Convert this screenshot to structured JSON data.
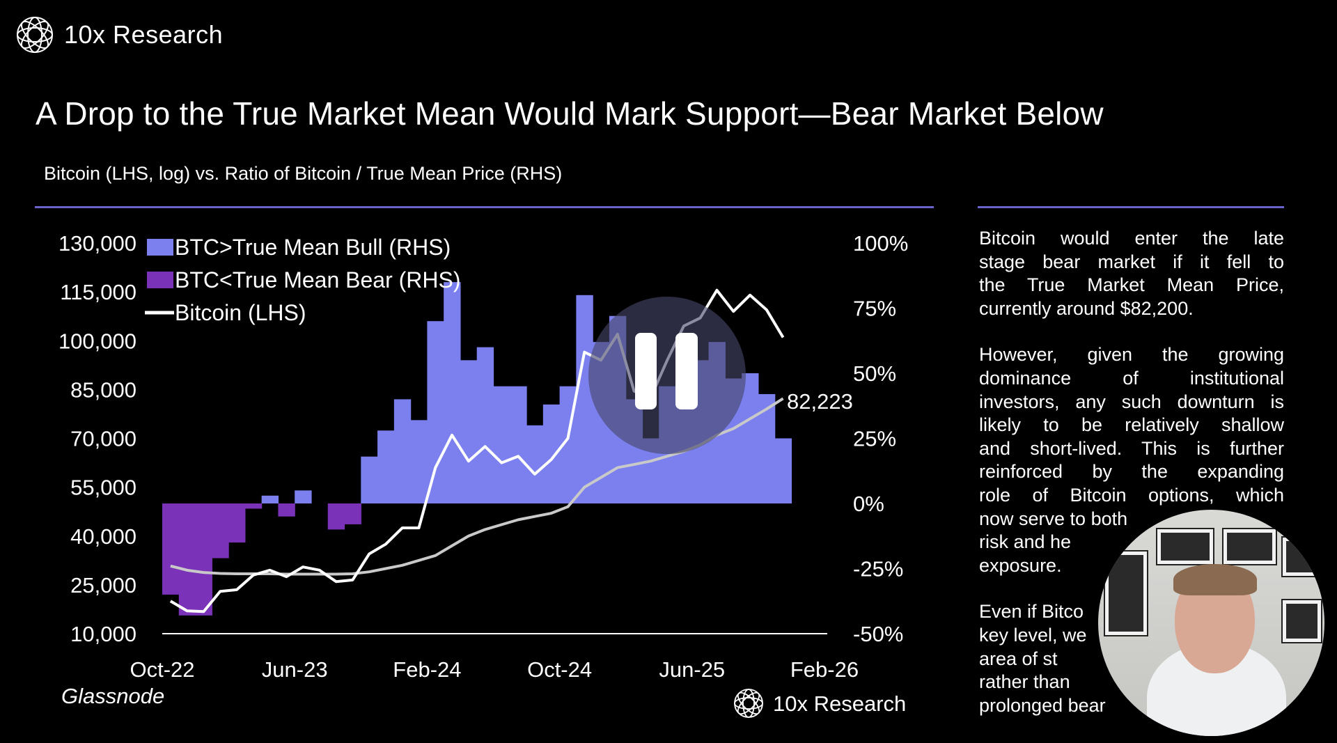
{
  "brand": {
    "name": "10x Research",
    "icon": "globe-mesh-icon"
  },
  "title": "A Drop to the True Market Mean Would Mark Support—Bear Market Below",
  "subtitle": "Bitcoin (LHS, log) vs. Ratio of Bitcoin / True Mean Price (RHS)",
  "source": "Glassnode",
  "footer_brand": "10x Research",
  "colors": {
    "bull": "#7b80ee",
    "bear": "#7a33b8",
    "bitcoin": "#ffffff",
    "true_mean": "#c9c9c9",
    "rule": "#6a63c9"
  },
  "chart_data": {
    "type": "area",
    "x_ticks": [
      "Oct-22",
      "Jun-23",
      "Feb-24",
      "Oct-24",
      "Jun-25",
      "Feb-26"
    ],
    "y_left_ticks": [
      "10,000",
      "25,000",
      "40,000",
      "55,000",
      "70,000",
      "85,000",
      "100,000",
      "115,000",
      "130,000"
    ],
    "y_right_ticks": [
      "-50%",
      "-25%",
      "0%",
      "25%",
      "50%",
      "75%",
      "100%"
    ],
    "ylim_left": [
      10000,
      130000
    ],
    "ylim_right": [
      -50,
      100
    ],
    "legend": [
      {
        "label": "BTC>True Mean Bull (RHS)",
        "kind": "area"
      },
      {
        "label": "BTC<True Mean Bear (RHS)",
        "kind": "area"
      },
      {
        "label": "Bitcoin (LHS)",
        "kind": "line"
      }
    ],
    "legend_position": "top-left",
    "annotation": "82,223",
    "x": [
      "Oct-22",
      "Nov-22",
      "Dec-22",
      "Jan-23",
      "Feb-23",
      "Mar-23",
      "Apr-23",
      "May-23",
      "Jun-23",
      "Jul-23",
      "Aug-23",
      "Sep-23",
      "Oct-23",
      "Nov-23",
      "Dec-23",
      "Jan-24",
      "Feb-24",
      "Mar-24",
      "Apr-24",
      "May-24",
      "Jun-24",
      "Jul-24",
      "Aug-24",
      "Sep-24",
      "Oct-24",
      "Nov-24",
      "Dec-24",
      "Jan-25",
      "Feb-25",
      "Mar-25",
      "Apr-25",
      "May-25",
      "Jun-25",
      "Jul-25",
      "Aug-25",
      "Sep-25",
      "Oct-25",
      "Nov-25"
    ],
    "series": [
      {
        "name": "Bitcoin (LHS)",
        "axis": "left",
        "values": [
          20000,
          17000,
          16800,
          23000,
          23500,
          28000,
          29500,
          27500,
          30500,
          29500,
          26000,
          26500,
          34500,
          37500,
          42500,
          42500,
          61000,
          71000,
          63000,
          67500,
          62500,
          64500,
          59000,
          63500,
          70000,
          96500,
          94000,
          102000,
          84500,
          82500,
          94000,
          104500,
          107000,
          115500,
          109000,
          114000,
          109500,
          101000
        ]
      },
      {
        "axis": "left",
        "values": [
          30800,
          29500,
          28800,
          28500,
          28400,
          28400,
          28400,
          28300,
          28300,
          28300,
          28300,
          28400,
          29000,
          30000,
          31000,
          32500,
          34000,
          37000,
          40000,
          42000,
          43500,
          45000,
          46000,
          47000,
          49000,
          55000,
          58000,
          61000,
          62000,
          63000,
          64500,
          66000,
          68000,
          71000,
          73000,
          76000,
          79000,
          82223
        ]
      },
      {
        "axis": "right",
        "unit": "%",
        "values": [
          -35,
          -43,
          -43,
          -21,
          -15,
          -2,
          3,
          -5,
          5,
          0,
          -10,
          -8,
          18,
          28,
          40,
          32,
          70,
          85,
          55,
          60,
          45,
          45,
          30,
          38,
          45,
          80,
          62,
          72,
          40,
          25,
          45,
          55,
          55,
          62,
          48,
          50,
          42,
          25
        ]
      }
    ]
  },
  "commentary": {
    "p1": [
      "Bitcoin would enter the late",
      "stage bear market if it fell to",
      "the True Market Mean Price,",
      "currently around $82,200."
    ],
    "p2": [
      "However, given the growing",
      "dominance of institutional",
      "investors, any such downturn is",
      "likely to be relatively shallow",
      "and short-lived. This is further",
      "reinforced by the expanding",
      "role of Bitcoin options, which",
      "now serve to both",
      "risk and he",
      "exposure."
    ],
    "p3": [
      "Even if Bitco",
      "key level, we",
      "area of st",
      "rather than",
      "prolonged bear"
    ]
  },
  "overlay": {
    "icon": "pause-icon"
  },
  "webcam": {
    "icon": "presenter-video"
  }
}
